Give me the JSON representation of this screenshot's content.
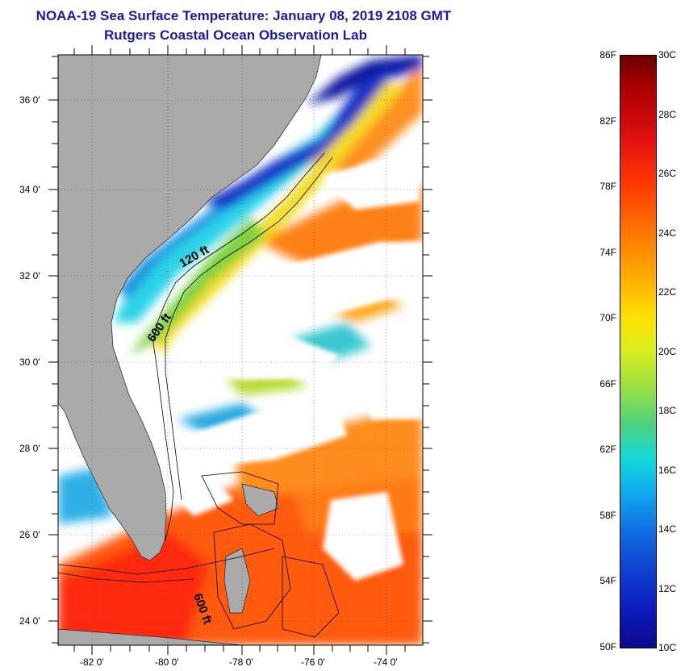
{
  "header": {
    "title": "NOAA-19 Sea Surface Temperature:  January 08, 2019 2108 GMT",
    "subtitle": "Rutgers Coastal Ocean Observation Lab"
  },
  "map": {
    "lat_labels": [
      "36 0'",
      "34 0'",
      "32 0'",
      "30 0'",
      "28 0'",
      "26 0'",
      "24 0'"
    ],
    "lon_labels": [
      "-82 0'",
      "-80 0'",
      "-78 0'",
      "-76 0'",
      "-74 0'"
    ],
    "contours": [
      "120 ft",
      "600 ft",
      "600 ft"
    ]
  },
  "colorbar": {
    "fahrenheit": [
      "86F",
      "82F",
      "78F",
      "74F",
      "70F",
      "66F",
      "62F",
      "58F",
      "54F",
      "50F"
    ],
    "celsius": [
      "30C",
      "28C",
      "26C",
      "24C",
      "22C",
      "20C",
      "18C",
      "16C",
      "14C",
      "12C",
      "10C"
    ]
  },
  "colors": {
    "title": "#1a1aa6",
    "land": "#aaaaaa",
    "cloud": "#ffffff"
  }
}
